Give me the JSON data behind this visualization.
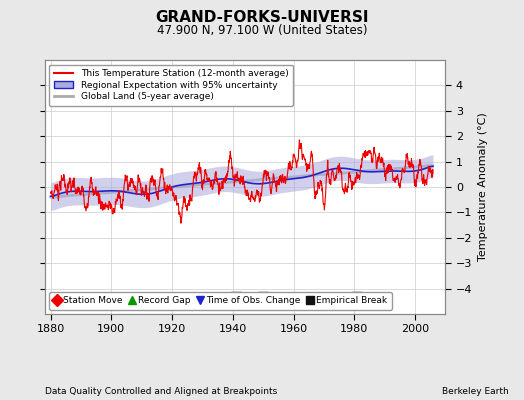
{
  "title": "GRAND-FORKS-UNIVERSI",
  "subtitle": "47.900 N, 97.100 W (United States)",
  "xlabel_bottom": "Data Quality Controlled and Aligned at Breakpoints",
  "xlabel_right": "Berkeley Earth",
  "ylabel": "Temperature Anomaly (°C)",
  "xlim": [
    1878,
    2010
  ],
  "ylim": [
    -5,
    5
  ],
  "yticks": [
    -4,
    -3,
    -2,
    -1,
    0,
    1,
    2,
    3,
    4
  ],
  "xticks": [
    1880,
    1900,
    1920,
    1940,
    1960,
    1980,
    2000
  ],
  "bg_color": "#e8e8e8",
  "plot_bg_color": "#ffffff",
  "grid_color": "#cccccc",
  "station_color": "#ee0000",
  "regional_color": "#2222cc",
  "regional_fill": "#aaaadd",
  "global_color": "#aaaaaa",
  "record_gap_x": 1893,
  "emp_break_x1": 1941,
  "emp_break_x2": 1950,
  "emp_break_x3": 1981,
  "marker_y": -4.35,
  "seed": 7
}
